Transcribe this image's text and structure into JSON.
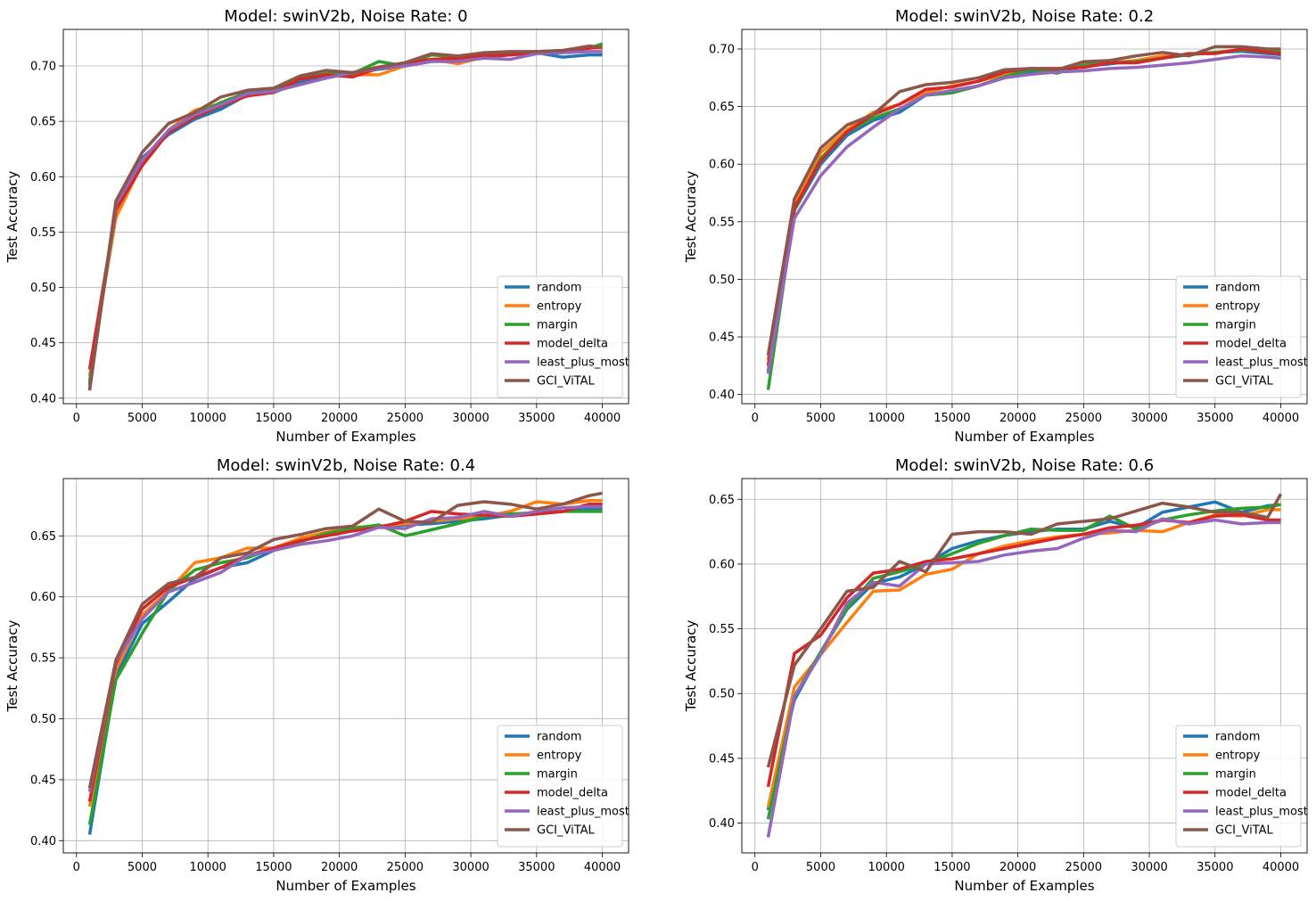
{
  "figure": {
    "title": ""
  },
  "chart_data": [
    {
      "type": "line",
      "title": "Model: swinV2b, Noise Rate: 0",
      "xlabel": "Number of Examples",
      "ylabel": "Test Accuracy",
      "xlim": [
        -1000,
        42000
      ],
      "ylim": [
        0.395,
        0.733
      ],
      "xticks": [
        "0",
        "5000",
        "10000",
        "15000",
        "20000",
        "25000",
        "30000",
        "35000",
        "40000"
      ],
      "yticks": [
        "0.40",
        "0.45",
        "0.50",
        "0.55",
        "0.60",
        "0.65",
        "0.70"
      ],
      "grid": true,
      "legend_position": "lower-right",
      "x": [
        1000,
        3000,
        5000,
        7000,
        9000,
        11000,
        13000,
        15000,
        17000,
        19000,
        21000,
        23000,
        25000,
        27000,
        29000,
        31000,
        33000,
        35000,
        37000,
        39000,
        40000
      ],
      "series": [
        {
          "name": "random",
          "color": "#1f77b4",
          "values": [
            0.412,
            0.572,
            0.617,
            0.638,
            0.652,
            0.661,
            0.674,
            0.676,
            0.685,
            0.69,
            0.694,
            0.697,
            0.7,
            0.704,
            0.705,
            0.708,
            0.71,
            0.712,
            0.708,
            0.71,
            0.71
          ]
        },
        {
          "name": "entropy",
          "color": "#ff7f0e",
          "values": [
            0.42,
            0.563,
            0.612,
            0.642,
            0.66,
            0.666,
            0.675,
            0.678,
            0.688,
            0.692,
            0.692,
            0.692,
            0.7,
            0.706,
            0.702,
            0.708,
            0.711,
            0.713,
            0.714,
            0.717,
            0.716
          ]
        },
        {
          "name": "margin",
          "color": "#2ca02c",
          "values": [
            0.415,
            0.57,
            0.615,
            0.641,
            0.656,
            0.667,
            0.676,
            0.677,
            0.689,
            0.693,
            0.693,
            0.704,
            0.7,
            0.71,
            0.708,
            0.71,
            0.712,
            0.713,
            0.714,
            0.716,
            0.72
          ]
        },
        {
          "name": "model_delta",
          "color": "#d62728",
          "values": [
            0.426,
            0.57,
            0.61,
            0.64,
            0.654,
            0.664,
            0.673,
            0.676,
            0.688,
            0.692,
            0.69,
            0.698,
            0.702,
            0.706,
            0.707,
            0.709,
            0.71,
            0.712,
            0.714,
            0.716,
            0.717
          ]
        },
        {
          "name": "least_plus_most",
          "color": "#9467bd",
          "values": [
            0.408,
            0.575,
            0.615,
            0.642,
            0.656,
            0.665,
            0.675,
            0.677,
            0.683,
            0.689,
            0.694,
            0.698,
            0.7,
            0.704,
            0.704,
            0.707,
            0.706,
            0.711,
            0.712,
            0.713,
            0.713
          ]
        },
        {
          "name": "GCI_ViTAL",
          "color": "#8c564b",
          "values": [
            0.407,
            0.578,
            0.622,
            0.648,
            0.658,
            0.672,
            0.678,
            0.68,
            0.691,
            0.696,
            0.694,
            0.699,
            0.703,
            0.711,
            0.709,
            0.712,
            0.713,
            0.713,
            0.714,
            0.718,
            0.717
          ]
        }
      ]
    },
    {
      "type": "line",
      "title": "Model: swinV2b, Noise Rate: 0.2",
      "xlabel": "Number of Examples",
      "ylabel": "Test Accuracy",
      "xlim": [
        -1000,
        42000
      ],
      "ylim": [
        0.392,
        0.717
      ],
      "xticks": [
        "0",
        "5000",
        "10000",
        "15000",
        "20000",
        "25000",
        "30000",
        "35000",
        "40000"
      ],
      "yticks": [
        "0.40",
        "0.45",
        "0.50",
        "0.55",
        "0.60",
        "0.65",
        "0.70"
      ],
      "grid": true,
      "legend_position": "lower-right",
      "x": [
        1000,
        3000,
        5000,
        7000,
        9000,
        11000,
        13000,
        15000,
        17000,
        19000,
        21000,
        23000,
        25000,
        27000,
        29000,
        31000,
        33000,
        35000,
        37000,
        39000,
        40000
      ],
      "series": [
        {
          "name": "random",
          "color": "#1f77b4",
          "values": [
            0.42,
            0.56,
            0.6,
            0.625,
            0.638,
            0.645,
            0.66,
            0.662,
            0.668,
            0.675,
            0.68,
            0.68,
            0.685,
            0.687,
            0.69,
            0.692,
            0.695,
            0.697,
            0.698,
            0.696,
            0.695
          ]
        },
        {
          "name": "entropy",
          "color": "#ff7f0e",
          "values": [
            0.43,
            0.565,
            0.61,
            0.63,
            0.645,
            0.652,
            0.662,
            0.668,
            0.672,
            0.678,
            0.682,
            0.682,
            0.688,
            0.688,
            0.69,
            0.694,
            0.695,
            0.697,
            0.699,
            0.698,
            0.698
          ]
        },
        {
          "name": "margin",
          "color": "#2ca02c",
          "values": [
            0.404,
            0.56,
            0.605,
            0.628,
            0.64,
            0.648,
            0.66,
            0.662,
            0.668,
            0.676,
            0.682,
            0.679,
            0.686,
            0.688,
            0.689,
            0.692,
            0.695,
            0.697,
            0.699,
            0.698,
            0.697
          ]
        },
        {
          "name": "model_delta",
          "color": "#d62728",
          "values": [
            0.425,
            0.562,
            0.603,
            0.628,
            0.643,
            0.652,
            0.665,
            0.667,
            0.672,
            0.68,
            0.683,
            0.683,
            0.684,
            0.688,
            0.688,
            0.692,
            0.696,
            0.696,
            0.7,
            0.697,
            0.696
          ]
        },
        {
          "name": "least_plus_most",
          "color": "#9467bd",
          "values": [
            0.418,
            0.553,
            0.59,
            0.615,
            0.632,
            0.648,
            0.66,
            0.664,
            0.668,
            0.675,
            0.678,
            0.68,
            0.681,
            0.683,
            0.684,
            0.686,
            0.688,
            0.691,
            0.694,
            0.693,
            0.692
          ]
        },
        {
          "name": "GCI_ViTAL",
          "color": "#8c564b",
          "values": [
            0.434,
            0.57,
            0.614,
            0.634,
            0.643,
            0.663,
            0.669,
            0.671,
            0.675,
            0.682,
            0.683,
            0.682,
            0.689,
            0.69,
            0.694,
            0.697,
            0.694,
            0.702,
            0.702,
            0.7,
            0.7
          ]
        }
      ]
    },
    {
      "type": "line",
      "title": "Model: swinV2b, Noise Rate: 0.4",
      "xlabel": "Number of Examples",
      "ylabel": "Test Accuracy",
      "xlim": [
        -1000,
        42000
      ],
      "ylim": [
        0.39,
        0.697
      ],
      "xticks": [
        "0",
        "5000",
        "10000",
        "15000",
        "20000",
        "25000",
        "30000",
        "35000",
        "40000"
      ],
      "yticks": [
        "0.40",
        "0.45",
        "0.50",
        "0.55",
        "0.60",
        "0.65"
      ],
      "grid": true,
      "legend_position": "lower-right",
      "x": [
        1000,
        3000,
        5000,
        7000,
        9000,
        11000,
        13000,
        15000,
        17000,
        19000,
        21000,
        23000,
        25000,
        27000,
        29000,
        31000,
        33000,
        35000,
        37000,
        39000,
        40000
      ],
      "series": [
        {
          "name": "random",
          "color": "#1f77b4",
          "values": [
            0.405,
            0.535,
            0.578,
            0.596,
            0.615,
            0.624,
            0.628,
            0.638,
            0.648,
            0.652,
            0.654,
            0.657,
            0.659,
            0.66,
            0.662,
            0.664,
            0.667,
            0.668,
            0.67,
            0.672,
            0.672
          ]
        },
        {
          "name": "entropy",
          "color": "#ff7f0e",
          "values": [
            0.428,
            0.54,
            0.585,
            0.605,
            0.628,
            0.632,
            0.64,
            0.64,
            0.648,
            0.653,
            0.657,
            0.658,
            0.66,
            0.662,
            0.664,
            0.666,
            0.67,
            0.678,
            0.676,
            0.679,
            0.679
          ]
        },
        {
          "name": "margin",
          "color": "#2ca02c",
          "values": [
            0.413,
            0.532,
            0.57,
            0.605,
            0.622,
            0.628,
            0.632,
            0.64,
            0.645,
            0.652,
            0.656,
            0.659,
            0.65,
            0.655,
            0.66,
            0.666,
            0.668,
            0.669,
            0.67,
            0.67,
            0.67
          ]
        },
        {
          "name": "model_delta",
          "color": "#d62728",
          "values": [
            0.432,
            0.545,
            0.59,
            0.608,
            0.616,
            0.624,
            0.634,
            0.64,
            0.646,
            0.65,
            0.654,
            0.657,
            0.662,
            0.67,
            0.668,
            0.667,
            0.666,
            0.668,
            0.67,
            0.676,
            0.676
          ]
        },
        {
          "name": "least_plus_most",
          "color": "#9467bd",
          "values": [
            0.44,
            0.547,
            0.582,
            0.604,
            0.612,
            0.62,
            0.634,
            0.638,
            0.643,
            0.646,
            0.65,
            0.657,
            0.656,
            0.664,
            0.665,
            0.67,
            0.666,
            0.67,
            0.673,
            0.674,
            0.674
          ]
        },
        {
          "name": "GCI_ViTAL",
          "color": "#8c564b",
          "values": [
            0.443,
            0.548,
            0.594,
            0.611,
            0.616,
            0.632,
            0.636,
            0.647,
            0.651,
            0.656,
            0.658,
            0.672,
            0.662,
            0.661,
            0.675,
            0.678,
            0.676,
            0.672,
            0.676,
            0.683,
            0.685
          ]
        }
      ]
    },
    {
      "type": "line",
      "title": "Model: swinV2b, Noise Rate: 0.6",
      "xlabel": "Number of Examples",
      "ylabel": "Test Accuracy",
      "xlim": [
        -1000,
        42000
      ],
      "ylim": [
        0.377,
        0.666
      ],
      "xticks": [
        "0",
        "5000",
        "10000",
        "15000",
        "20000",
        "25000",
        "30000",
        "35000",
        "40000"
      ],
      "yticks": [
        "0.40",
        "0.45",
        "0.50",
        "0.55",
        "0.60",
        "0.65"
      ],
      "grid": true,
      "legend_position": "lower-right",
      "x": [
        1000,
        3000,
        5000,
        7000,
        9000,
        11000,
        13000,
        15000,
        17000,
        19000,
        21000,
        23000,
        25000,
        27000,
        29000,
        31000,
        33000,
        35000,
        37000,
        39000,
        40000
      ],
      "series": [
        {
          "name": "random",
          "color": "#1f77b4",
          "values": [
            0.41,
            0.495,
            0.532,
            0.565,
            0.585,
            0.59,
            0.6,
            0.612,
            0.618,
            0.622,
            0.625,
            0.627,
            0.627,
            0.633,
            0.628,
            0.64,
            0.644,
            0.648,
            0.64,
            0.645,
            0.646
          ]
        },
        {
          "name": "entropy",
          "color": "#ff7f0e",
          "values": [
            0.412,
            0.505,
            0.53,
            0.555,
            0.579,
            0.58,
            0.592,
            0.596,
            0.608,
            0.614,
            0.618,
            0.621,
            0.623,
            0.624,
            0.626,
            0.625,
            0.632,
            0.638,
            0.637,
            0.642,
            0.642
          ]
        },
        {
          "name": "margin",
          "color": "#2ca02c",
          "values": [
            0.403,
            0.498,
            0.532,
            0.566,
            0.589,
            0.594,
            0.6,
            0.608,
            0.616,
            0.622,
            0.627,
            0.626,
            0.626,
            0.637,
            0.627,
            0.634,
            0.638,
            0.641,
            0.643,
            0.644,
            0.646
          ]
        },
        {
          "name": "model_delta",
          "color": "#d62728",
          "values": [
            0.428,
            0.531,
            0.545,
            0.574,
            0.593,
            0.596,
            0.602,
            0.604,
            0.608,
            0.612,
            0.616,
            0.62,
            0.623,
            0.628,
            0.63,
            0.634,
            0.632,
            0.637,
            0.638,
            0.634,
            0.634
          ]
        },
        {
          "name": "least_plus_most",
          "color": "#9467bd",
          "values": [
            0.389,
            0.498,
            0.53,
            0.57,
            0.586,
            0.583,
            0.6,
            0.601,
            0.602,
            0.607,
            0.61,
            0.612,
            0.62,
            0.626,
            0.625,
            0.635,
            0.631,
            0.634,
            0.631,
            0.632,
            0.632
          ]
        },
        {
          "name": "GCI_ViTAL",
          "color": "#8c564b",
          "values": [
            0.443,
            0.522,
            0.55,
            0.579,
            0.582,
            0.602,
            0.594,
            0.623,
            0.625,
            0.625,
            0.623,
            0.631,
            0.633,
            0.635,
            0.641,
            0.647,
            0.644,
            0.64,
            0.64,
            0.636,
            0.654
          ]
        }
      ]
    }
  ]
}
